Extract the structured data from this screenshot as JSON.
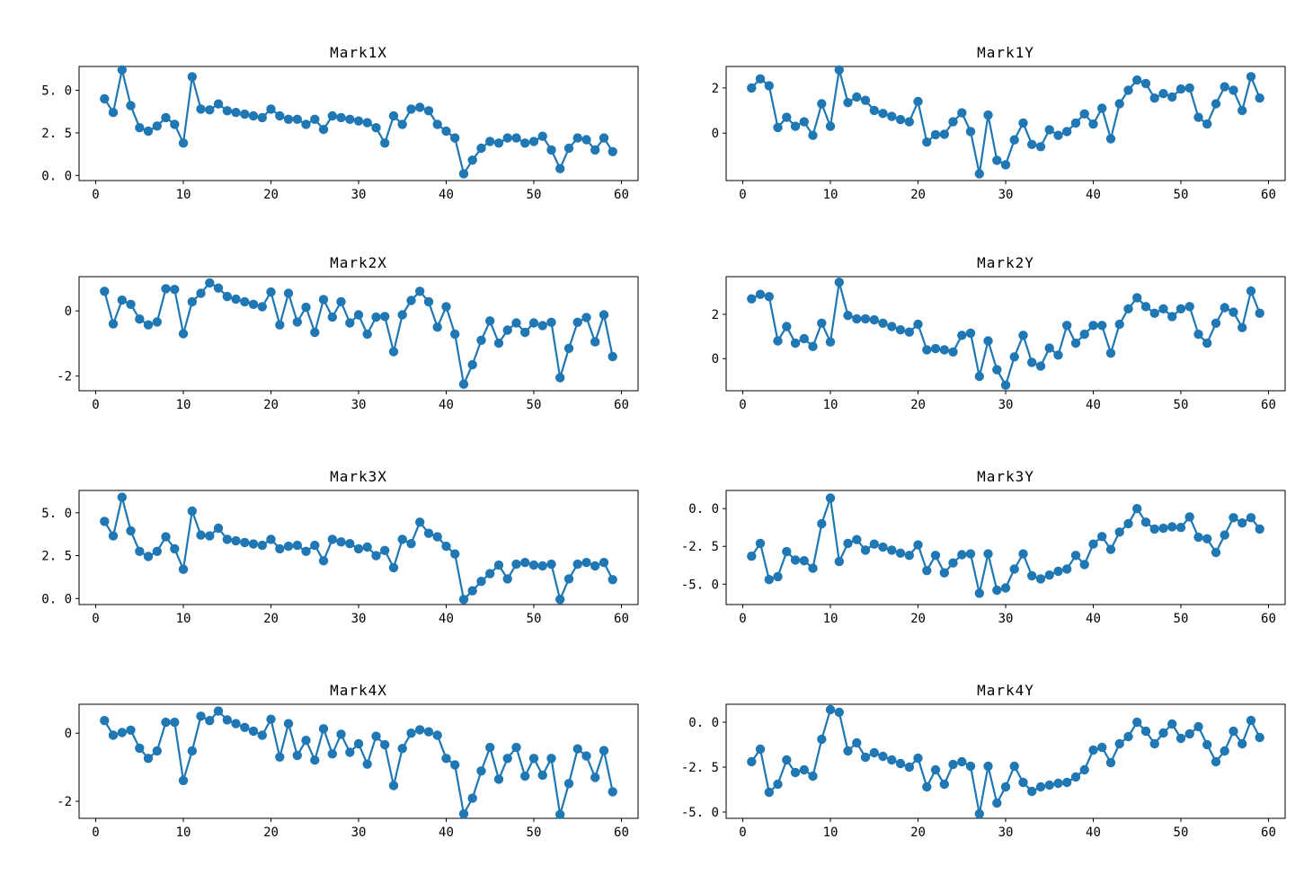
{
  "figure": {
    "background": "#ffffff",
    "series_color": "#1f77b4",
    "axis_color": "#000000",
    "marker": "circle",
    "line_style": "solid"
  },
  "chart_data": {
    "type": "line",
    "x": [
      1,
      2,
      3,
      4,
      5,
      6,
      7,
      8,
      9,
      10,
      11,
      12,
      13,
      14,
      15,
      16,
      17,
      18,
      19,
      20,
      21,
      22,
      23,
      24,
      25,
      26,
      27,
      28,
      29,
      30,
      31,
      32,
      33,
      34,
      35,
      36,
      37,
      38,
      39,
      40,
      41,
      42,
      43,
      44,
      45,
      46,
      47,
      48,
      49,
      50,
      51,
      52,
      53,
      54,
      55,
      56,
      57,
      58,
      59
    ],
    "xlim": [
      -1.9,
      61.9
    ],
    "xticks": [
      0,
      10,
      20,
      30,
      40,
      50,
      60
    ],
    "xtick_labels": [
      "0",
      "10",
      "20",
      "30",
      "40",
      "50",
      "60"
    ],
    "grid": false,
    "legend": "none",
    "marker_color": "#1f77b4",
    "charts": [
      {
        "title": "Mark1X",
        "ylim": [
          -0.3,
          6.4
        ],
        "yticks": [
          0.0,
          2.5,
          5.0
        ],
        "ytick_labels": [
          "0. 0",
          "2. 5",
          "5. 0"
        ],
        "y": [
          4.5,
          3.7,
          6.2,
          4.1,
          2.8,
          2.6,
          2.9,
          3.4,
          3.0,
          1.9,
          5.8,
          3.9,
          3.85,
          4.2,
          3.8,
          3.7,
          3.6,
          3.5,
          3.4,
          3.9,
          3.5,
          3.3,
          3.3,
          3.0,
          3.3,
          2.7,
          3.5,
          3.4,
          3.3,
          3.2,
          3.1,
          2.8,
          1.9,
          3.5,
          3.0,
          3.9,
          4.0,
          3.8,
          3.0,
          2.6,
          2.2,
          0.1,
          0.9,
          1.6,
          2.0,
          1.9,
          2.2,
          2.2,
          1.9,
          2.0,
          2.3,
          1.5,
          0.4,
          1.6,
          2.2,
          2.1,
          1.5,
          2.2,
          1.4
        ]
      },
      {
        "title": "Mark1Y",
        "ylim": [
          -2.1,
          2.95
        ],
        "yticks": [
          0,
          2
        ],
        "ytick_labels": [
          "0",
          "2"
        ],
        "y": [
          2.0,
          2.4,
          2.1,
          0.25,
          0.7,
          0.3,
          0.5,
          -0.1,
          1.3,
          0.3,
          2.8,
          1.35,
          1.6,
          1.45,
          1.0,
          0.87,
          0.74,
          0.6,
          0.5,
          1.4,
          -0.4,
          -0.07,
          -0.05,
          0.5,
          0.9,
          0.07,
          -1.8,
          0.8,
          -1.2,
          -1.4,
          -0.3,
          0.45,
          -0.5,
          -0.6,
          0.15,
          -0.1,
          0.07,
          0.45,
          0.85,
          0.4,
          1.1,
          -0.25,
          1.3,
          1.9,
          2.35,
          2.2,
          1.55,
          1.75,
          1.6,
          1.95,
          2.0,
          0.7,
          0.4,
          1.3,
          2.05,
          1.9,
          1.0,
          2.5,
          1.55
        ]
      },
      {
        "title": "Mark2X",
        "ylim": [
          -2.45,
          1.05
        ],
        "yticks": [
          -2,
          0
        ],
        "ytick_labels": [
          "-2",
          "0"
        ],
        "y": [
          0.6,
          -0.4,
          0.33,
          0.2,
          -0.25,
          -0.43,
          -0.34,
          0.68,
          0.66,
          -0.7,
          0.28,
          0.54,
          0.86,
          0.7,
          0.44,
          0.36,
          0.28,
          0.2,
          0.13,
          0.58,
          -0.43,
          0.54,
          -0.34,
          0.11,
          -0.66,
          0.35,
          -0.19,
          0.28,
          -0.37,
          -0.12,
          -0.71,
          -0.19,
          -0.17,
          -1.25,
          -0.12,
          0.32,
          0.6,
          0.28,
          -0.5,
          0.13,
          -0.71,
          -2.25,
          -1.65,
          -0.9,
          -0.31,
          -0.99,
          -0.59,
          -0.37,
          -0.66,
          -0.37,
          -0.45,
          -0.35,
          -2.05,
          -1.15,
          -0.35,
          -0.2,
          -0.95,
          -0.12,
          -1.4
        ]
      },
      {
        "title": "Mark2Y",
        "ylim": [
          -1.45,
          3.7
        ],
        "yticks": [
          0,
          2
        ],
        "ytick_labels": [
          "0",
          "2"
        ],
        "y": [
          2.7,
          2.9,
          2.8,
          0.8,
          1.45,
          0.7,
          0.9,
          0.55,
          1.6,
          0.75,
          3.45,
          1.95,
          1.8,
          1.8,
          1.75,
          1.6,
          1.45,
          1.3,
          1.2,
          1.55,
          0.4,
          0.45,
          0.4,
          0.3,
          1.05,
          1.15,
          -0.8,
          0.8,
          -0.5,
          -1.2,
          0.08,
          1.05,
          -0.17,
          -0.34,
          0.48,
          0.16,
          1.5,
          0.7,
          1.1,
          1.5,
          1.5,
          0.25,
          1.55,
          2.25,
          2.75,
          2.35,
          2.05,
          2.25,
          1.9,
          2.25,
          2.35,
          1.1,
          0.7,
          1.6,
          2.3,
          2.1,
          1.4,
          3.05,
          2.05
        ]
      },
      {
        "title": "Mark3X",
        "ylim": [
          -0.35,
          6.3
        ],
        "yticks": [
          0.0,
          2.5,
          5.0
        ],
        "ytick_labels": [
          "0. 0",
          "2. 5",
          "5. 0"
        ],
        "y": [
          4.5,
          3.65,
          5.9,
          3.95,
          2.75,
          2.45,
          2.75,
          3.6,
          2.9,
          1.7,
          5.1,
          3.7,
          3.65,
          4.1,
          3.45,
          3.36,
          3.27,
          3.18,
          3.1,
          3.45,
          2.9,
          3.05,
          3.1,
          2.75,
          3.1,
          2.2,
          3.45,
          3.3,
          3.2,
          2.9,
          3.0,
          2.5,
          2.8,
          1.8,
          3.45,
          3.2,
          4.45,
          3.8,
          3.6,
          3.05,
          2.6,
          -0.05,
          0.45,
          1.0,
          1.45,
          1.95,
          1.15,
          2.0,
          2.1,
          1.95,
          1.9,
          2.0,
          -0.05,
          1.15,
          2.0,
          2.1,
          1.9,
          2.1,
          1.1
        ]
      },
      {
        "title": "Mark3Y",
        "ylim": [
          -6.35,
          1.2
        ],
        "yticks": [
          -5.0,
          -2.5,
          0.0
        ],
        "ytick_labels": [
          "-5. 0",
          "-2. 5",
          "0. 0"
        ],
        "y": [
          -3.15,
          -2.3,
          -4.7,
          -4.5,
          -2.85,
          -3.4,
          -3.45,
          -3.95,
          -1.0,
          0.7,
          -3.5,
          -2.3,
          -2.05,
          -2.75,
          -2.35,
          -2.55,
          -2.75,
          -2.95,
          -3.1,
          -2.4,
          -4.1,
          -3.1,
          -4.25,
          -3.6,
          -3.05,
          -3.0,
          -5.6,
          -3.0,
          -5.4,
          -5.25,
          -4.0,
          -3.0,
          -4.45,
          -4.65,
          -4.4,
          -4.15,
          -4.0,
          -3.1,
          -3.7,
          -2.35,
          -1.85,
          -2.7,
          -1.55,
          -1.0,
          0.0,
          -0.9,
          -1.35,
          -1.3,
          -1.2,
          -1.25,
          -0.55,
          -1.9,
          -2.0,
          -2.9,
          -1.75,
          -0.6,
          -0.95,
          -0.6,
          -1.35
        ]
      },
      {
        "title": "Mark4X",
        "ylim": [
          -2.5,
          0.85
        ],
        "yticks": [
          -2,
          0
        ],
        "ytick_labels": [
          "-2",
          "0"
        ],
        "y": [
          0.37,
          -0.06,
          0.02,
          0.09,
          -0.44,
          -0.74,
          -0.52,
          0.32,
          0.32,
          -1.39,
          -0.52,
          0.5,
          0.37,
          0.65,
          0.39,
          0.28,
          0.17,
          0.06,
          -0.06,
          0.41,
          -0.7,
          0.28,
          -0.65,
          -0.21,
          -0.79,
          0.13,
          -0.61,
          -0.03,
          -0.56,
          -0.31,
          -0.91,
          -0.09,
          -0.34,
          -1.54,
          -0.45,
          0.0,
          0.1,
          0.04,
          -0.06,
          -0.74,
          -0.93,
          -2.37,
          -1.91,
          -1.11,
          -0.42,
          -1.35,
          -0.74,
          -0.42,
          -1.26,
          -0.74,
          -1.23,
          -0.74,
          -2.39,
          -1.48,
          -0.46,
          -0.67,
          -1.3,
          -0.51,
          -1.72
        ]
      },
      {
        "title": "Mark4Y",
        "ylim": [
          -5.35,
          1.0
        ],
        "yticks": [
          -5.0,
          -2.5,
          0.0
        ],
        "ytick_labels": [
          "-5. 0",
          "-2. 5",
          "0. 0"
        ],
        "y": [
          -2.2,
          -1.5,
          -3.9,
          -3.45,
          -2.1,
          -2.8,
          -2.65,
          -3.0,
          -0.95,
          0.7,
          0.55,
          -1.6,
          -1.15,
          -1.95,
          -1.7,
          -1.9,
          -2.1,
          -2.3,
          -2.5,
          -2.0,
          -3.6,
          -2.65,
          -3.45,
          -2.35,
          -2.2,
          -2.45,
          -5.1,
          -2.45,
          -4.5,
          -3.6,
          -2.45,
          -3.35,
          -3.85,
          -3.6,
          -3.5,
          -3.4,
          -3.35,
          -3.05,
          -2.65,
          -1.55,
          -1.4,
          -2.25,
          -1.2,
          -0.8,
          0.0,
          -0.5,
          -1.2,
          -0.6,
          -0.1,
          -0.9,
          -0.65,
          -0.25,
          -1.25,
          -2.2,
          -1.6,
          -0.5,
          -1.2,
          0.1,
          -0.85
        ]
      }
    ]
  }
}
